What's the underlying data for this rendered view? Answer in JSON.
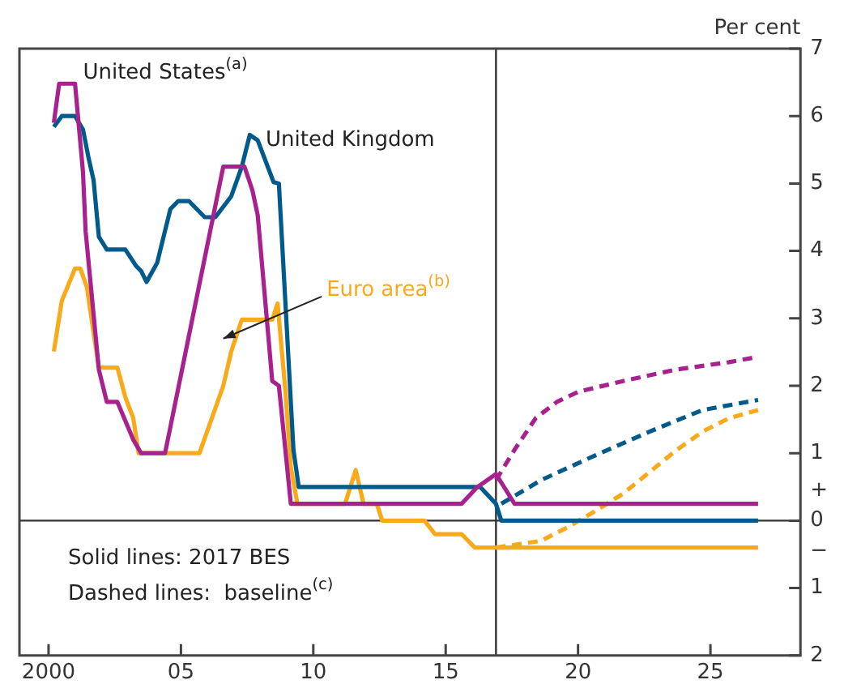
{
  "chart_data": {
    "type": "line",
    "ylabel": "Per cent",
    "annotations": [
      "Solid lines: 2017 BES",
      "Dashed lines:  baseline$^{(c)}$"
    ],
    "xlim": [
      1998.9,
      2028.4
    ],
    "xticks": [
      {
        "value": 2000,
        "label": "2000"
      },
      {
        "value": 2005,
        "label": "05"
      },
      {
        "value": 2010,
        "label": "10"
      },
      {
        "value": 2015,
        "label": "15"
      },
      {
        "value": 2020,
        "label": "20"
      },
      {
        "value": 2025,
        "label": "25"
      }
    ],
    "ylim": [
      -2,
      7
    ],
    "yticks": [
      {
        "value": -2,
        "label": "2"
      },
      {
        "value": -1,
        "label": "1"
      },
      {
        "value": -0.45,
        "label": "−"
      },
      0,
      {
        "value": 0.45,
        "label": "+"
      },
      1,
      2,
      3,
      4,
      5,
      6,
      7
    ],
    "ref_lines": [
      {
        "axis": "y",
        "value": 0,
        "color": "#333333"
      },
      {
        "axis": "x",
        "value": 2016.9,
        "color": "#333333"
      }
    ],
    "legend": false,
    "grid": false,
    "marker": "none",
    "series": [
      {
        "name": "United States$^{(a)}$",
        "color": "#a8228f",
        "line_style": "solid",
        "x": [
          2000.2,
          2000.4,
          2001.0,
          2001.3,
          2001.4,
          2001.9,
          2002.2,
          2002.6,
          2003.2,
          2003.5,
          2004.4,
          2006.6,
          2007.4,
          2007.7,
          2007.9,
          2008.45,
          2008.7,
          2009.15,
          2015.6,
          2016.2,
          2016.9,
          2017.6,
          2026.8
        ],
        "values": [
          5.9,
          6.48,
          6.48,
          5.17,
          4.29,
          2.24,
          1.76,
          1.76,
          1.2,
          1.0,
          1.0,
          5.25,
          5.25,
          4.9,
          4.53,
          2.07,
          2.0,
          0.25,
          0.25,
          0.5,
          0.69,
          0.25,
          0.25
        ]
      },
      {
        "name": "United Kingdom",
        "color": "#005a8c",
        "line_style": "solid",
        "x": [
          2000.2,
          2000.5,
          2001.0,
          2001.3,
          2001.5,
          2001.7,
          2001.9,
          2002.2,
          2002.9,
          2003.3,
          2003.5,
          2003.7,
          2004.1,
          2004.6,
          2004.9,
          2005.3,
          2005.9,
          2006.3,
          2006.9,
          2007.3,
          2007.6,
          2007.9,
          2008.5,
          2008.7,
          2009.25,
          2009.45,
          2016.3,
          2016.9,
          2017.1,
          2026.8
        ],
        "values": [
          5.84,
          6.0,
          6.0,
          5.8,
          5.4,
          5.05,
          4.21,
          4.02,
          4.02,
          3.78,
          3.7,
          3.54,
          3.82,
          4.62,
          4.74,
          4.74,
          4.5,
          4.5,
          4.81,
          5.25,
          5.72,
          5.64,
          5.02,
          5.0,
          1.05,
          0.5,
          0.5,
          0.25,
          0.0,
          0.0
        ]
      },
      {
        "name": "Euro area$^{(b)}$",
        "color": "#f9aa1a",
        "line_style": "solid",
        "x": [
          2000.2,
          2000.5,
          2001.0,
          2001.2,
          2001.45,
          2001.7,
          2001.9,
          2002.6,
          2002.9,
          2003.2,
          2003.4,
          2005.7,
          2006.6,
          2006.9,
          2007.3,
          2008.45,
          2008.65,
          2008.95,
          2009.15,
          2009.4,
          2011.2,
          2011.6,
          2011.9,
          2012.4,
          2012.6,
          2014.2,
          2014.6,
          2015.6,
          2016.1,
          2026.8
        ],
        "values": [
          2.51,
          3.26,
          3.74,
          3.74,
          3.46,
          2.79,
          2.27,
          2.27,
          1.83,
          1.52,
          1.0,
          1.0,
          2.0,
          2.51,
          2.98,
          2.98,
          3.22,
          1.91,
          0.8,
          0.25,
          0.25,
          0.75,
          0.25,
          0.25,
          0.0,
          0.0,
          -0.2,
          -0.2,
          -0.4,
          -0.4
        ]
      },
      {
        "color": "#a8228f",
        "line_style": "dashed",
        "x": [
          2016.9,
          2017.6,
          2018.4,
          2019.2,
          2020.0,
          2021.7,
          2023.7,
          2025.7,
          2026.8
        ],
        "values": [
          0.6,
          1.05,
          1.52,
          1.76,
          1.91,
          2.07,
          2.24,
          2.35,
          2.43
        ]
      },
      {
        "color": "#005a8c",
        "line_style": "dashed",
        "x": [
          2017.1,
          2018.6,
          2020.6,
          2022.7,
          2024.7,
          2026.8
        ],
        "values": [
          0.25,
          0.6,
          0.96,
          1.32,
          1.64,
          1.79
        ]
      },
      {
        "color": "#f9aa1a",
        "line_style": "dashed",
        "x": [
          2016.9,
          2018.6,
          2019.6,
          2020.6,
          2021.7,
          2022.7,
          2023.7,
          2024.7,
          2025.7,
          2026.8
        ],
        "values": [
          -0.4,
          -0.3,
          -0.1,
          0.13,
          0.4,
          0.72,
          1.04,
          1.32,
          1.52,
          1.64
        ]
      }
    ]
  }
}
